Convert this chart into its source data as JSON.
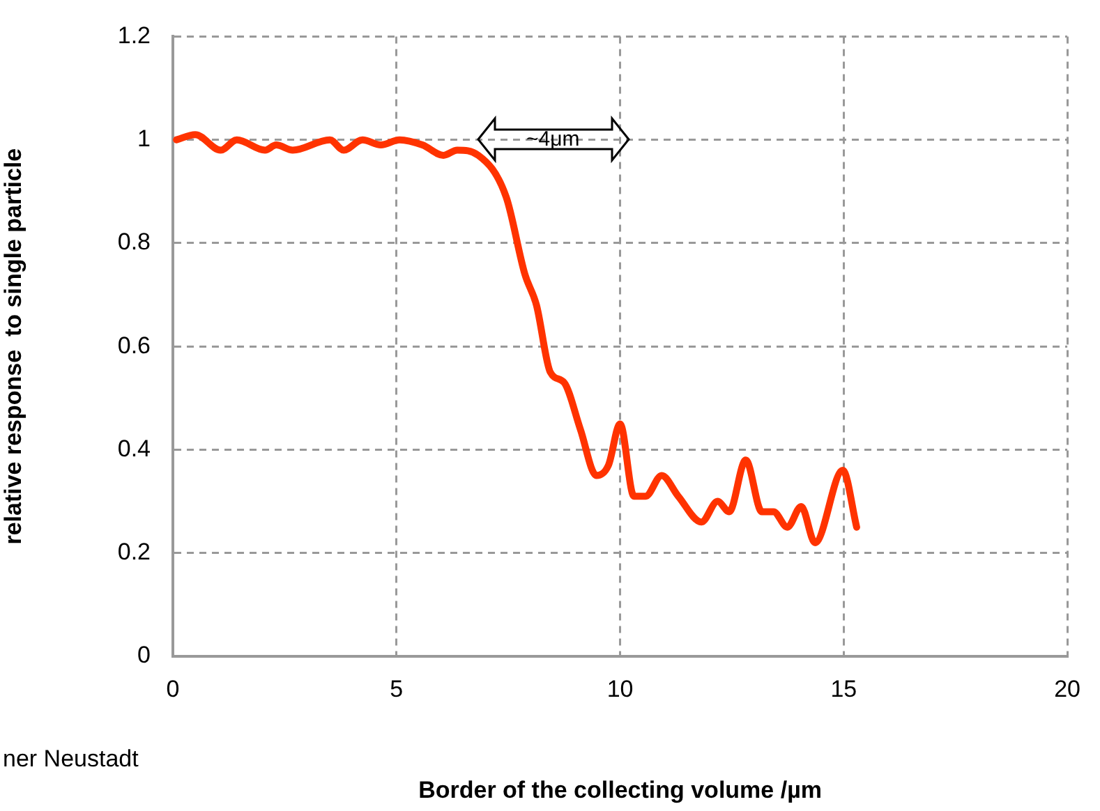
{
  "chart_data": {
    "type": "line",
    "xlabel": "Border of the collecting volume /µm",
    "ylabel": "relative response  to single particle",
    "xlim": [
      0,
      20
    ],
    "xticks": [
      0,
      5,
      10,
      15,
      20
    ],
    "ylim": [
      0,
      1.2
    ],
    "yticks": [
      0,
      0.2,
      0.4,
      0.6,
      0.8,
      1,
      1.2
    ],
    "grid": true,
    "legend": false,
    "marker": "none",
    "line_style": "solid",
    "series": [
      {
        "color": "#ff3300",
        "x": [
          0.08,
          0.5,
          1.07,
          1.43,
          2.06,
          2.31,
          2.68,
          3.51,
          3.82,
          4.24,
          4.65,
          5.07,
          5.58,
          6.05,
          6.36,
          6.83,
          7.45,
          7.87,
          8.13,
          8.44,
          8.75,
          9.11,
          9.47,
          9.74,
          10.0,
          10.31,
          10.57,
          10.93,
          11.3,
          11.82,
          12.18,
          12.44,
          12.81,
          13.17,
          13.43,
          13.74,
          14.05,
          14.36,
          14.98,
          15.29
        ],
        "values": [
          1.0,
          1.01,
          0.98,
          1.0,
          0.98,
          0.99,
          0.98,
          1.0,
          0.98,
          1.0,
          0.99,
          1.0,
          0.99,
          0.97,
          0.98,
          0.97,
          0.89,
          0.74,
          0.68,
          0.55,
          0.53,
          0.44,
          0.35,
          0.37,
          0.45,
          0.31,
          0.31,
          0.35,
          0.31,
          0.26,
          0.3,
          0.28,
          0.38,
          0.28,
          0.28,
          0.25,
          0.29,
          0.22,
          0.36,
          0.25
        ]
      }
    ],
    "annotations": [
      "~4μm",
      "ner Neustadt"
    ]
  }
}
